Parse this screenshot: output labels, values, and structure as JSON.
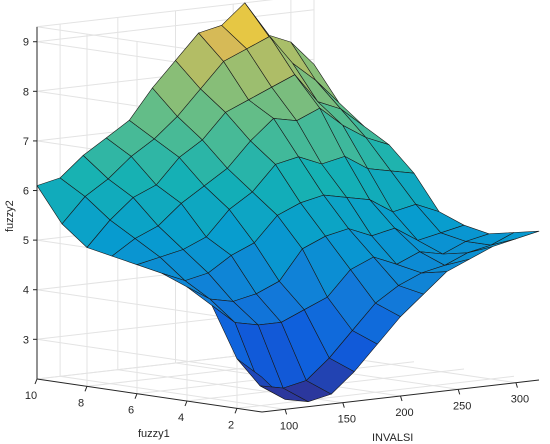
{
  "chart_data": {
    "type": "surface",
    "title": "",
    "xlabel": "INVALSI",
    "ylabel": "fuzzy1",
    "zlabel": "fuzzy2",
    "xlim": [
      80,
      320
    ],
    "ylim": [
      1,
      10
    ],
    "zlim": [
      2.2,
      9.3
    ],
    "x_ticks": [
      "100",
      "150",
      "200",
      "250",
      "300"
    ],
    "y_ticks": [
      "2",
      "4",
      "6",
      "8",
      "10"
    ],
    "z_ticks": [
      "3",
      "4",
      "5",
      "6",
      "7",
      "8",
      "9"
    ],
    "grid": true,
    "colormap": "parula",
    "x_grid": [
      80,
      100,
      120,
      140,
      160,
      180,
      200,
      220,
      240,
      260,
      280,
      300,
      320
    ],
    "y_grid": [
      10,
      9,
      8,
      7,
      6,
      5,
      4,
      3,
      2,
      1
    ],
    "z_values": [
      [
        6.1,
        6.2,
        6.6,
        6.9,
        7.2,
        7.8,
        8.3,
        8.8,
        8.9,
        9.3,
        8.6,
        8.4,
        7.9
      ],
      [
        5.4,
        5.9,
        6.2,
        6.6,
        6.9,
        7.3,
        7.8,
        8.3,
        8.5,
        8.7,
        8.1,
        7.7,
        7.2
      ],
      [
        5.0,
        5.5,
        5.9,
        6.1,
        6.6,
        6.9,
        7.4,
        7.6,
        7.8,
        8.0,
        7.4,
        7.2,
        6.8
      ],
      [
        4.9,
        5.2,
        5.4,
        5.8,
        6.1,
        6.4,
        6.9,
        7.3,
        7.2,
        7.4,
        7.0,
        6.7,
        6.5
      ],
      [
        4.8,
        4.9,
        5.0,
        5.2,
        5.7,
        6.0,
        6.5,
        6.6,
        6.4,
        6.5,
        6.2,
        6.1,
        6.0
      ],
      [
        4.7,
        4.5,
        4.6,
        4.9,
        5.1,
        5.6,
        5.8,
        5.9,
        5.8,
        5.7,
        5.4,
        5.5,
        5.3
      ],
      [
        4.5,
        4.2,
        4.1,
        4.2,
        4.4,
        5.0,
        5.2,
        5.3,
        5.1,
        5.2,
        4.9,
        5.0,
        5.1
      ],
      [
        4.2,
        3.8,
        3.7,
        3.7,
        3.9,
        4.1,
        4.6,
        4.8,
        4.6,
        4.8,
        4.7,
        4.9,
        5.0
      ],
      [
        3.2,
        2.6,
        2.5,
        2.6,
        3.0,
        3.5,
        4.0,
        4.3,
        4.5,
        4.6,
        4.8,
        4.9,
        5.1
      ],
      [
        2.9,
        2.4,
        2.3,
        2.4,
        2.8,
        3.3,
        3.8,
        4.2,
        4.6,
        4.8,
        5.0,
        5.1,
        5.2
      ]
    ]
  }
}
